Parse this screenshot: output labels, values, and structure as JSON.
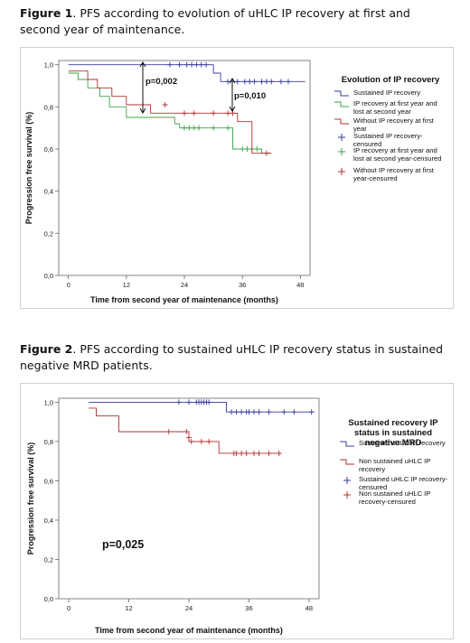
{
  "captions": [
    {
      "label": "Figure 1",
      "text": ". PFS according to evolution of uHLC IP recovery at first and second year of maintenance."
    },
    {
      "label": "Figure 2",
      "text": ". PFS according to sustained uHLC IP recovery status in sustained negative MRD patients."
    }
  ],
  "legends": [
    {
      "title": "Evolution of IP recovery",
      "items": [
        {
          "label": "Sustained IP recovery",
          "color": "#3a3aa0",
          "kind": "line"
        },
        {
          "label": "IP recovery at first year and lost at second year",
          "color": "#3aa44a",
          "kind": "line"
        },
        {
          "label": "Without IP recovery at first year",
          "color": "#b03030",
          "kind": "line"
        },
        {
          "label": "Sustained IP recovery-censured",
          "color": "#3a3aa0",
          "kind": "censor"
        },
        {
          "label": "IP recovery at first year and lost at second year-censured",
          "color": "#3aa44a",
          "kind": "censor"
        },
        {
          "label": "Without IP recovery at first year-censured",
          "color": "#b03030",
          "kind": "censor"
        }
      ]
    },
    {
      "title": "Sustained recovery IP status in sustained negative MRD",
      "items": [
        {
          "label": "Sustained uHLC IP recovery",
          "color": "#3a3aa0",
          "kind": "line"
        },
        {
          "label": "Non sustained uHLC IP recovery",
          "color": "#b03030",
          "kind": "line"
        },
        {
          "label": "Sustained uHLC IP recovery-censured",
          "color": "#3a3aa0",
          "kind": "censor"
        },
        {
          "label": "Non sustained uHLC IP recovery-censured",
          "color": "#b03030",
          "kind": "censor"
        }
      ]
    }
  ],
  "chart_data": [
    {
      "type": "line",
      "subtype": "kaplan-meier",
      "xlabel": "Time from second year of maintenance (months)",
      "ylabel": "Progression free survival (%)",
      "xticks": [
        "0",
        "12",
        "24",
        "36",
        "48"
      ],
      "yticks": [
        "0,0",
        "0,2",
        "0,4",
        "0,6",
        "0,8",
        "1,0"
      ],
      "xlim": [
        -2,
        50
      ],
      "ylim": [
        0,
        1.02
      ],
      "annotations": [
        "p=0,002",
        "p=0,010"
      ],
      "series": [
        {
          "color": "#3a3aa0",
          "steps": [
            [
              0,
              1.0
            ],
            [
              30,
              1.0
            ],
            [
              30,
              0.96
            ],
            [
              31.5,
              0.96
            ],
            [
              31.5,
              0.92
            ],
            [
              49,
              0.92
            ]
          ],
          "censored": [
            [
              21,
              1.0
            ],
            [
              23,
              1.0
            ],
            [
              24.5,
              1.0
            ],
            [
              25.5,
              1.0
            ],
            [
              26.5,
              1.0
            ],
            [
              27.5,
              1.0
            ],
            [
              28.5,
              1.0
            ],
            [
              33,
              0.92
            ],
            [
              35,
              0.92
            ],
            [
              36.5,
              0.92
            ],
            [
              37.5,
              0.92
            ],
            [
              38.5,
              0.92
            ],
            [
              40,
              0.92
            ],
            [
              41,
              0.92
            ],
            [
              42,
              0.92
            ],
            [
              44,
              0.92
            ],
            [
              45.5,
              0.92
            ]
          ]
        },
        {
          "color": "#3aa44a",
          "steps": [
            [
              0,
              0.96
            ],
            [
              2,
              0.96
            ],
            [
              2,
              0.93
            ],
            [
              4,
              0.93
            ],
            [
              4,
              0.89
            ],
            [
              6.5,
              0.89
            ],
            [
              6.5,
              0.85
            ],
            [
              8.5,
              0.85
            ],
            [
              8.5,
              0.8
            ],
            [
              12,
              0.8
            ],
            [
              12,
              0.75
            ],
            [
              22,
              0.75
            ],
            [
              22,
              0.72
            ],
            [
              23,
              0.72
            ],
            [
              23,
              0.7
            ],
            [
              34,
              0.7
            ],
            [
              34,
              0.6
            ],
            [
              40,
              0.6
            ],
            [
              40,
              0.58
            ],
            [
              42,
              0.58
            ]
          ],
          "censored": [
            [
              24,
              0.7
            ],
            [
              25,
              0.7
            ],
            [
              26,
              0.7
            ],
            [
              27,
              0.7
            ],
            [
              30,
              0.7
            ],
            [
              33,
              0.7
            ],
            [
              36,
              0.6
            ],
            [
              37,
              0.6
            ],
            [
              38,
              0.6
            ],
            [
              39,
              0.6
            ]
          ]
        },
        {
          "color": "#b03030",
          "steps": [
            [
              0,
              0.97
            ],
            [
              4,
              0.97
            ],
            [
              4,
              0.93
            ],
            [
              6,
              0.93
            ],
            [
              6,
              0.89
            ],
            [
              9,
              0.89
            ],
            [
              9,
              0.85
            ],
            [
              12,
              0.85
            ],
            [
              12,
              0.81
            ],
            [
              17,
              0.81
            ],
            [
              17,
              0.77
            ],
            [
              35,
              0.77
            ],
            [
              35,
              0.73
            ],
            [
              38,
              0.73
            ],
            [
              38,
              0.58
            ],
            [
              42,
              0.58
            ]
          ],
          "censored": [
            [
              20,
              0.81
            ],
            [
              24,
              0.77
            ],
            [
              26,
              0.77
            ],
            [
              30,
              0.77
            ],
            [
              33,
              0.77
            ],
            [
              34,
              0.77
            ],
            [
              41,
              0.58
            ]
          ]
        }
      ]
    },
    {
      "type": "line",
      "subtype": "kaplan-meier",
      "xlabel": "Time from second year of maintenance (months)",
      "ylabel": "Progression free survival (%)",
      "xticks": [
        "0",
        "12",
        "24",
        "36",
        "48"
      ],
      "yticks": [
        "0,0",
        "0,2",
        "0,4",
        "0,6",
        "0,8",
        "1,0"
      ],
      "xlim": [
        -2,
        50
      ],
      "ylim": [
        0,
        1.02
      ],
      "annotations": [
        "p=0,025"
      ],
      "series": [
        {
          "color": "#3a3aa0",
          "steps": [
            [
              4,
              1.0
            ],
            [
              31.5,
              1.0
            ],
            [
              31.5,
              0.95
            ],
            [
              49,
              0.95
            ]
          ],
          "censored": [
            [
              22,
              1.0
            ],
            [
              24,
              1.0
            ],
            [
              25.5,
              1.0
            ],
            [
              26,
              1.0
            ],
            [
              26.5,
              1.0
            ],
            [
              27,
              1.0
            ],
            [
              27.5,
              1.0
            ],
            [
              28,
              1.0
            ],
            [
              32.5,
              0.95
            ],
            [
              33.5,
              0.95
            ],
            [
              34.5,
              0.95
            ],
            [
              35.5,
              0.95
            ],
            [
              36,
              0.95
            ],
            [
              37,
              0.95
            ],
            [
              38,
              0.95
            ],
            [
              40,
              0.95
            ],
            [
              43,
              0.95
            ],
            [
              45,
              0.95
            ],
            [
              48.5,
              0.95
            ]
          ]
        },
        {
          "color": "#b03030",
          "steps": [
            [
              4,
              0.97
            ],
            [
              5.5,
              0.97
            ],
            [
              5.5,
              0.93
            ],
            [
              10,
              0.93
            ],
            [
              10,
              0.85
            ],
            [
              24,
              0.85
            ],
            [
              24,
              0.8
            ],
            [
              30,
              0.8
            ],
            [
              30,
              0.74
            ],
            [
              42.5,
              0.74
            ]
          ],
          "censored": [
            [
              20,
              0.85
            ],
            [
              23.5,
              0.85
            ],
            [
              24,
              0.82
            ],
            [
              24.5,
              0.8
            ],
            [
              26.5,
              0.8
            ],
            [
              28,
              0.8
            ],
            [
              33,
              0.74
            ],
            [
              33.5,
              0.74
            ],
            [
              34.5,
              0.74
            ],
            [
              35.5,
              0.74
            ],
            [
              37,
              0.74
            ],
            [
              38,
              0.74
            ],
            [
              40,
              0.74
            ],
            [
              42,
              0.74
            ]
          ]
        }
      ]
    }
  ]
}
